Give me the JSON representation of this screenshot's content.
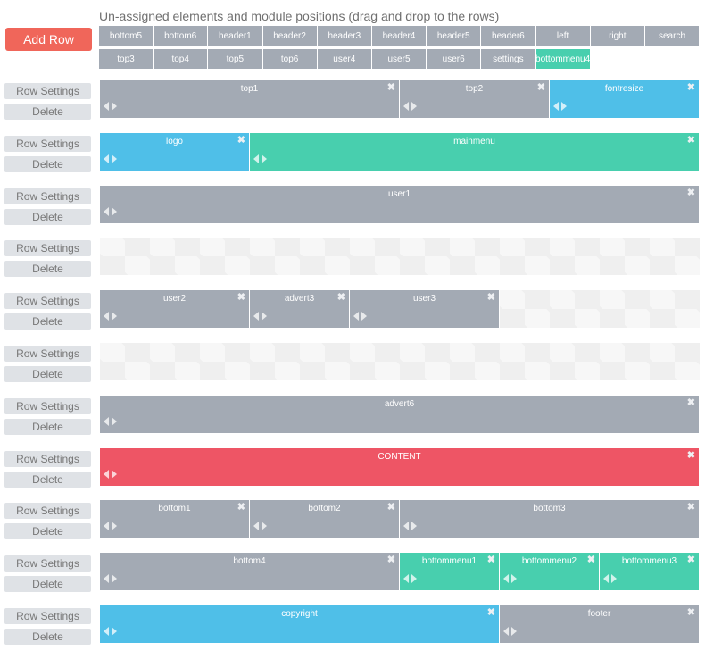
{
  "header": {
    "title": "Un-assigned elements and module positions (drag and drop to the rows)",
    "add_row_label": "Add Row"
  },
  "pool": {
    "items": [
      {
        "label": "bottom5",
        "color": "gray"
      },
      {
        "label": "bottom6",
        "color": "gray"
      },
      {
        "label": "header1",
        "color": "gray"
      },
      {
        "label": "header2",
        "color": "gray"
      },
      {
        "label": "header3",
        "color": "gray"
      },
      {
        "label": "header4",
        "color": "gray"
      },
      {
        "label": "header5",
        "color": "gray"
      },
      {
        "label": "header6",
        "color": "gray"
      },
      {
        "label": "left",
        "color": "gray"
      },
      {
        "label": "right",
        "color": "gray"
      },
      {
        "label": "search",
        "color": "gray"
      },
      {
        "label": "top3",
        "color": "gray"
      },
      {
        "label": "top4",
        "color": "gray"
      },
      {
        "label": "top5",
        "color": "gray"
      },
      {
        "label": "top6",
        "color": "gray"
      },
      {
        "label": "user4",
        "color": "gray"
      },
      {
        "label": "user5",
        "color": "gray"
      },
      {
        "label": "user6",
        "color": "gray"
      },
      {
        "label": "settings",
        "color": "gray"
      },
      {
        "label": "bottommenu4",
        "color": "green"
      }
    ]
  },
  "row_controls": {
    "settings_label": "Row Settings",
    "delete_label": "Delete"
  },
  "rows": [
    {
      "modules": [
        {
          "name": "top1",
          "w": 6,
          "color": "gray"
        },
        {
          "name": "top2",
          "w": 3,
          "color": "gray"
        },
        {
          "name": "fontresize",
          "w": 3,
          "color": "blue"
        }
      ]
    },
    {
      "modules": [
        {
          "name": "logo",
          "w": 3,
          "color": "blue"
        },
        {
          "name": "mainmenu",
          "w": 9,
          "color": "green"
        }
      ]
    },
    {
      "modules": [
        {
          "name": "user1",
          "w": 12,
          "color": "gray"
        }
      ]
    },
    {
      "modules": []
    },
    {
      "modules": [
        {
          "name": "user2",
          "w": 3,
          "color": "gray"
        },
        {
          "name": "advert3",
          "w": 2,
          "color": "gray"
        },
        {
          "name": "user3",
          "w": 3,
          "color": "gray"
        }
      ]
    },
    {
      "modules": []
    },
    {
      "modules": [
        {
          "name": "advert6",
          "w": 12,
          "color": "gray"
        }
      ]
    },
    {
      "modules": [
        {
          "name": "CONTENT",
          "w": 12,
          "color": "red"
        }
      ]
    },
    {
      "modules": [
        {
          "name": "bottom1",
          "w": 3,
          "color": "gray"
        },
        {
          "name": "bottom2",
          "w": 3,
          "color": "gray"
        },
        {
          "name": "bottom3",
          "w": 6,
          "color": "gray"
        }
      ]
    },
    {
      "modules": [
        {
          "name": "bottom4",
          "w": 6,
          "color": "gray"
        },
        {
          "name": "bottommenu1",
          "w": 2,
          "color": "green"
        },
        {
          "name": "bottommenu2",
          "w": 2,
          "color": "green"
        },
        {
          "name": "bottommenu3",
          "w": 2,
          "color": "green"
        }
      ]
    },
    {
      "modules": [
        {
          "name": "copyright",
          "w": 8,
          "color": "blue"
        },
        {
          "name": "footer",
          "w": 4,
          "color": "gray"
        }
      ]
    }
  ],
  "icons": {
    "close": "✖",
    "close_name": "close-icon",
    "left_name": "arrow-left-icon",
    "right_name": "arrow-right-icon"
  }
}
